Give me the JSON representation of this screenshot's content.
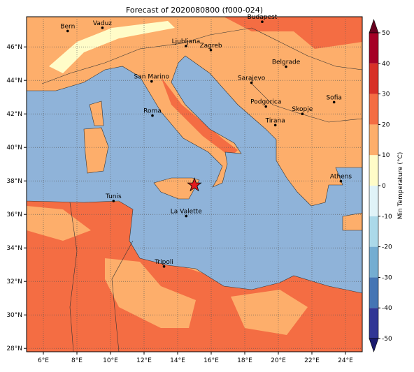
{
  "title": "Forecast of 2020080800 (f000-024)",
  "map": {
    "lon_range": [
      5,
      25
    ],
    "lat_range": [
      27.8,
      47.8
    ],
    "xticks": [
      {
        "value": 6,
        "label": "6°E"
      },
      {
        "value": 8,
        "label": "8°E"
      },
      {
        "value": 10,
        "label": "10°E"
      },
      {
        "value": 12,
        "label": "12°E"
      },
      {
        "value": 14,
        "label": "14°E"
      },
      {
        "value": 16,
        "label": "16°E"
      },
      {
        "value": 18,
        "label": "18°E"
      },
      {
        "value": 20,
        "label": "20°E"
      },
      {
        "value": 22,
        "label": "22°E"
      },
      {
        "value": 24,
        "label": "24°E"
      }
    ],
    "yticks": [
      {
        "value": 28,
        "label": "28°N"
      },
      {
        "value": 30,
        "label": "30°N"
      },
      {
        "value": 32,
        "label": "32°N"
      },
      {
        "value": 34,
        "label": "34°N"
      },
      {
        "value": 36,
        "label": "36°N"
      },
      {
        "value": 38,
        "label": "38°N"
      },
      {
        "value": 40,
        "label": "40°N"
      },
      {
        "value": 42,
        "label": "42°N"
      },
      {
        "value": 44,
        "label": "44°N"
      },
      {
        "value": 46,
        "label": "46°N"
      }
    ],
    "cities": [
      {
        "name": "Bern",
        "lon": 7.45,
        "lat": 46.95
      },
      {
        "name": "Vaduz",
        "lon": 9.52,
        "lat": 47.14
      },
      {
        "name": "Budapest",
        "lon": 19.04,
        "lat": 47.5
      },
      {
        "name": "Ljubljana",
        "lon": 14.5,
        "lat": 46.05
      },
      {
        "name": "Zagreb",
        "lon": 15.98,
        "lat": 45.81
      },
      {
        "name": "Belgrade",
        "lon": 20.46,
        "lat": 44.82
      },
      {
        "name": "San Marino",
        "lon": 12.45,
        "lat": 43.94
      },
      {
        "name": "Sarajevo",
        "lon": 18.4,
        "lat": 43.86
      },
      {
        "name": "Sofia",
        "lon": 23.32,
        "lat": 42.7
      },
      {
        "name": "Podgorica",
        "lon": 19.26,
        "lat": 42.44
      },
      {
        "name": "Skopje",
        "lon": 21.43,
        "lat": 42.0
      },
      {
        "name": "Roma",
        "lon": 12.5,
        "lat": 41.9
      },
      {
        "name": "Tirana",
        "lon": 19.82,
        "lat": 41.33
      },
      {
        "name": "Athens",
        "lon": 23.73,
        "lat": 37.98
      },
      {
        "name": "Tunis",
        "lon": 10.18,
        "lat": 36.8
      },
      {
        "name": "La Valette",
        "lon": 14.51,
        "lat": 35.9
      },
      {
        "name": "Tripoli",
        "lon": 13.19,
        "lat": 32.89
      }
    ],
    "marker": {
      "lon": 15.0,
      "lat": 37.75
    }
  },
  "colorbar": {
    "label": "Min Temperature (°C)",
    "levels": [
      -50,
      -40,
      -30,
      -20,
      -10,
      0,
      10,
      20,
      30,
      40,
      50
    ],
    "colors": [
      "#313695",
      "#4575b4",
      "#74add1",
      "#abd9e9",
      "#e0f3f8",
      "#fffcc8",
      "#fdae6b",
      "#f46d43",
      "#d73027",
      "#a50026"
    ],
    "ticks": [
      -50,
      -40,
      -30,
      -20,
      -10,
      0,
      10,
      20,
      30,
      40,
      50
    ]
  }
}
